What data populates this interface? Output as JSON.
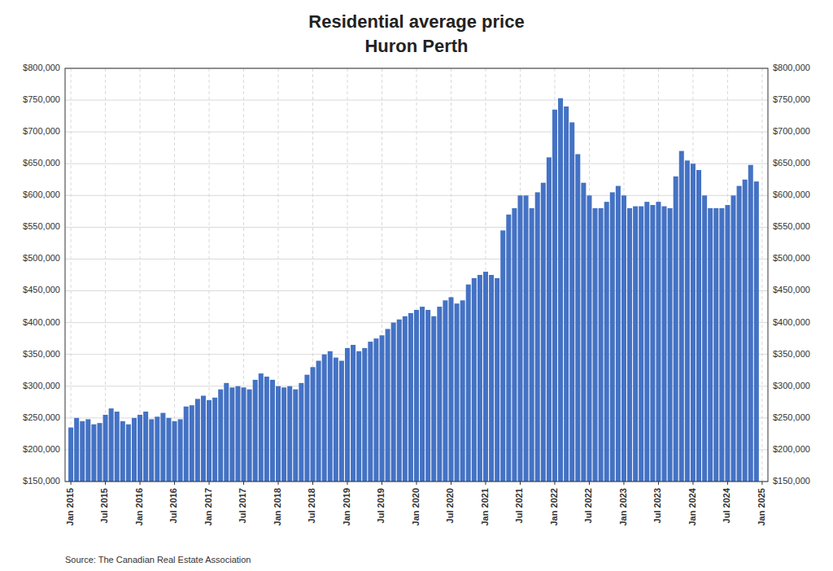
{
  "chart_data": {
    "type": "bar",
    "title": "Residential average price",
    "subtitle": "Huron Perth",
    "source": "Source: The Canadian Real Estate Association",
    "color": "#4472C4",
    "grid": true,
    "categories": [
      "Jan 2015",
      null,
      null,
      null,
      null,
      null,
      "Jul 2015",
      null,
      null,
      null,
      null,
      null,
      "Jan 2016",
      null,
      null,
      null,
      null,
      null,
      "Jul 2016",
      null,
      null,
      null,
      null,
      null,
      "Jan 2017",
      null,
      null,
      null,
      null,
      null,
      "Jul 2017",
      null,
      null,
      null,
      null,
      null,
      "Jan 2018",
      null,
      null,
      null,
      null,
      null,
      "Jul 2018",
      null,
      null,
      null,
      null,
      null,
      "Jan 2019",
      null,
      null,
      null,
      null,
      null,
      "Jul 2019",
      null,
      null,
      null,
      null,
      null,
      "Jan 2020",
      null,
      null,
      null,
      null,
      null,
      "Jul 2020",
      null,
      null,
      null,
      null,
      null,
      "Jan 2021",
      null,
      null,
      null,
      null,
      null,
      "Jul 2021",
      null,
      null,
      null,
      null,
      null,
      "Jan 2022",
      null,
      null,
      null,
      null,
      null,
      "Jul 2022",
      null,
      null,
      null,
      null,
      null,
      "Jan 2023",
      null,
      null,
      null,
      null,
      null,
      "Jul 2023",
      null,
      null,
      null,
      null,
      null,
      "Jan 2024",
      null,
      null,
      null,
      null,
      null,
      "Jul 2024",
      null,
      null,
      null,
      null,
      null,
      "Jan 2025"
    ],
    "values": [
      235000,
      250000,
      245000,
      248000,
      240000,
      242000,
      255000,
      265000,
      260000,
      245000,
      240000,
      250000,
      255000,
      260000,
      248000,
      252000,
      258000,
      250000,
      245000,
      248000,
      268000,
      270000,
      280000,
      285000,
      278000,
      282000,
      295000,
      305000,
      298000,
      300000,
      298000,
      295000,
      310000,
      320000,
      315000,
      310000,
      300000,
      298000,
      300000,
      295000,
      305000,
      318000,
      330000,
      340000,
      350000,
      355000,
      345000,
      340000,
      360000,
      365000,
      355000,
      360000,
      370000,
      375000,
      380000,
      390000,
      400000,
      405000,
      410000,
      415000,
      420000,
      425000,
      420000,
      410000,
      425000,
      435000,
      440000,
      430000,
      435000,
      460000,
      470000,
      475000,
      480000,
      475000,
      470000,
      545000,
      570000,
      580000,
      600000,
      600000,
      580000,
      605000,
      620000,
      660000,
      735000,
      753000,
      740000,
      715000,
      665000,
      620000,
      600000,
      580000,
      580000,
      590000,
      605000,
      615000,
      600000,
      580000,
      583000,
      583000,
      590000,
      585000,
      590000,
      583000,
      580000,
      630000,
      670000,
      655000,
      650000,
      640000,
      600000,
      580000,
      580000,
      580000,
      585000,
      600000,
      615000,
      625000,
      648000,
      622000,
      null
    ],
    "ylim": [
      150000,
      800000
    ],
    "yticks": [
      {
        "value": 150000,
        "label": "$150,000"
      },
      {
        "value": 200000,
        "label": "$200,000"
      },
      {
        "value": 250000,
        "label": "$250,000"
      },
      {
        "value": 300000,
        "label": "$300,000"
      },
      {
        "value": 350000,
        "label": "$350,000"
      },
      {
        "value": 400000,
        "label": "$400,000"
      },
      {
        "value": 450000,
        "label": "$450,000"
      },
      {
        "value": 500000,
        "label": "$500,000"
      },
      {
        "value": 550000,
        "label": "$550,000"
      },
      {
        "value": 600000,
        "label": "$600,000"
      },
      {
        "value": 650000,
        "label": "$650,000"
      },
      {
        "value": 700000,
        "label": "$700,000"
      },
      {
        "value": 750000,
        "label": "$750,000"
      },
      {
        "value": 800000,
        "label": "$800,000"
      }
    ]
  }
}
